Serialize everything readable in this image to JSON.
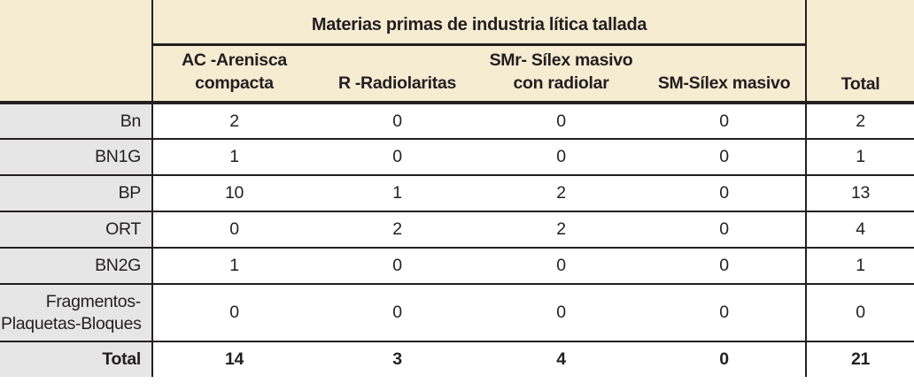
{
  "colors": {
    "cream": "#f6ecd2",
    "grey": "#e6e6e6",
    "ink": "#231f20"
  },
  "table": {
    "group_header": "Materias primas de industria lítica tallada",
    "columns": [
      "AC -Arenisca\ncompacta",
      "R -Radiolaritas",
      "SMr- Sílex masivo\ncon radiolar",
      "SM-Sílex masivo"
    ],
    "total_header": "Total",
    "rows": [
      {
        "label": "Bn",
        "values": [
          "2",
          "0",
          "0",
          "0"
        ],
        "total": "2"
      },
      {
        "label": "BN1G",
        "values": [
          "1",
          "0",
          "0",
          "0"
        ],
        "total": "1"
      },
      {
        "label": "BP",
        "values": [
          "10",
          "1",
          "2",
          "0"
        ],
        "total": "13"
      },
      {
        "label": "ORT",
        "values": [
          "0",
          "2",
          "2",
          "0"
        ],
        "total": "4"
      },
      {
        "label": "BN2G",
        "values": [
          "1",
          "0",
          "0",
          "0"
        ],
        "total": "1"
      },
      {
        "label": "Fragmentos-\nPlaquetas-Bloques",
        "values": [
          "0",
          "0",
          "0",
          "0"
        ],
        "total": "0"
      }
    ],
    "footer": {
      "label": "Total",
      "values": [
        "14",
        "3",
        "4",
        "0"
      ],
      "total": "21"
    }
  }
}
